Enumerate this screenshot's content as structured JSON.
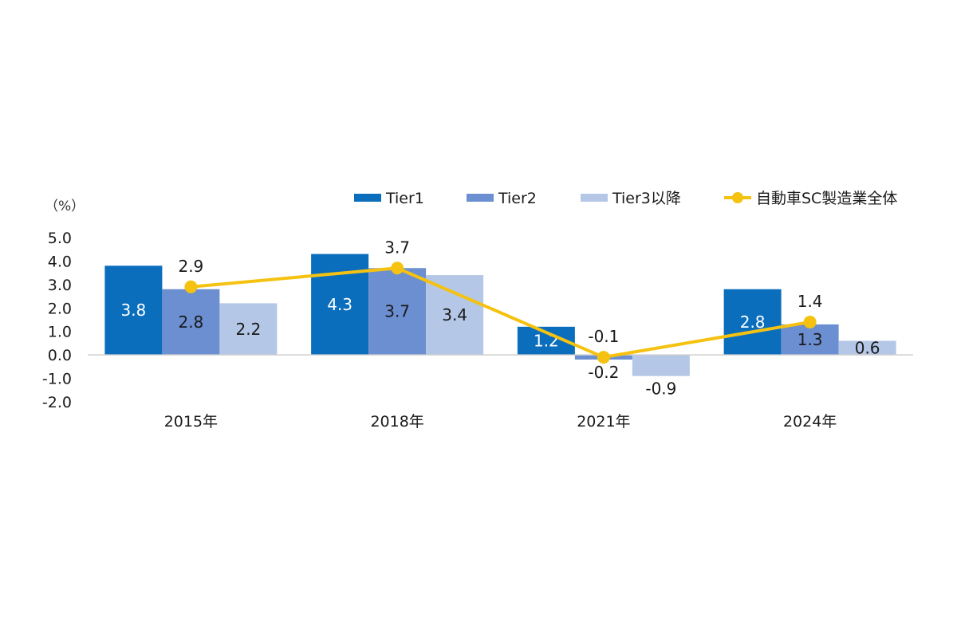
{
  "chart_data": {
    "type": "bar",
    "unit_label": "（%）",
    "categories": [
      "2015年",
      "2018年",
      "2021年",
      "2024年"
    ],
    "ylim": [
      -2.0,
      5.0
    ],
    "yticks": [
      "5.0",
      "4.0",
      "3.0",
      "2.0",
      "1.0",
      "0.0",
      "-1.0",
      "-2.0"
    ],
    "grid": false,
    "legend_position": "top-right",
    "series": [
      {
        "name": "Tier1",
        "type": "bar",
        "color": "#0A6EBD",
        "label_color": "#ffffff",
        "values": [
          3.8,
          4.3,
          1.2,
          2.8
        ]
      },
      {
        "name": "Tier2",
        "type": "bar",
        "color": "#6B8FD0",
        "label_color": "#1a1a1a",
        "values": [
          2.8,
          3.7,
          -0.2,
          1.3
        ]
      },
      {
        "name": "Tier3以降",
        "type": "bar",
        "color": "#B4C7E7",
        "label_color": "#1a1a1a",
        "values": [
          2.2,
          3.4,
          -0.9,
          0.6
        ]
      },
      {
        "name": "自動車SC製造業全体",
        "type": "line",
        "color": "#F5C211",
        "label_color": "#1a1a1a",
        "values": [
          2.9,
          3.7,
          -0.1,
          1.4
        ]
      }
    ]
  }
}
